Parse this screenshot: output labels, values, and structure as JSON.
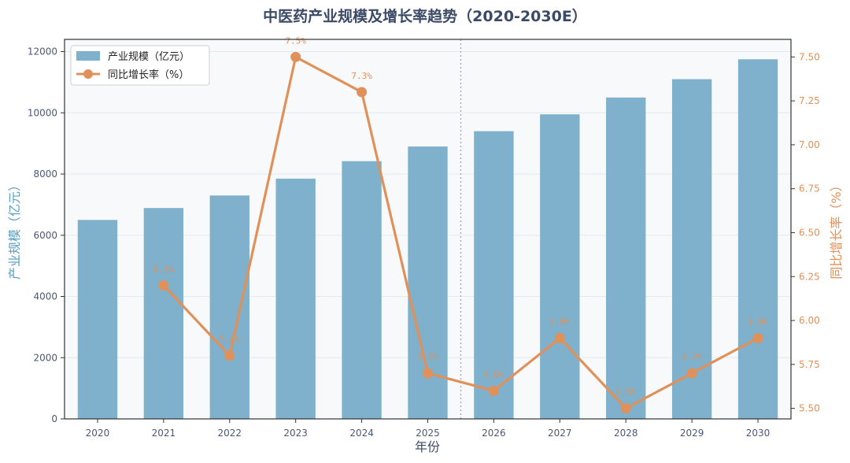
{
  "chart_data": {
    "type": "bar",
    "title": "中医药产业规模及增长率趋势（2020-2030E）",
    "xlabel": "年份",
    "ylabel_left": "产业规模（亿元）",
    "ylabel_right": "同比增长率（%）",
    "categories": [
      "2020",
      "2021",
      "2022",
      "2023",
      "2024",
      "2025",
      "2026",
      "2027",
      "2028",
      "2029",
      "2030"
    ],
    "ylim_left": [
      0,
      12400
    ],
    "yticks_left": [
      "0",
      "2000",
      "4000",
      "6000",
      "8000",
      "10000",
      "12000"
    ],
    "ylim_right": [
      5.44,
      7.6
    ],
    "yticks_right": [
      "5.50",
      "5.75",
      "6.00",
      "6.25",
      "6.50",
      "6.75",
      "7.00",
      "7.25",
      "7.50"
    ],
    "series": [
      {
        "name": "产业规模（亿元）",
        "type": "bar",
        "axis": "left",
        "color": "#7fb0cc",
        "values": [
          6500,
          6890,
          7300,
          7850,
          8420,
          8900,
          9400,
          9950,
          10500,
          11100,
          11750
        ]
      },
      {
        "name": "同比增长率（%）",
        "type": "line",
        "axis": "right",
        "color": "#e0915a",
        "x": [
          "2021",
          "2022",
          "2023",
          "2024",
          "2025",
          "2026",
          "2027",
          "2028",
          "2029",
          "2030"
        ],
        "values": [
          6.2,
          5.8,
          7.5,
          7.3,
          5.7,
          5.6,
          5.9,
          5.5,
          5.7,
          5.9
        ],
        "labels": [
          "6.2%",
          "5.8%",
          "7.5%",
          "7.3%",
          "5.7%",
          "5.6%",
          "5.9%",
          "5.5%",
          "5.7%",
          "5.9%"
        ]
      }
    ],
    "divider_after": "2025",
    "legend": "top-left",
    "grid": true
  }
}
